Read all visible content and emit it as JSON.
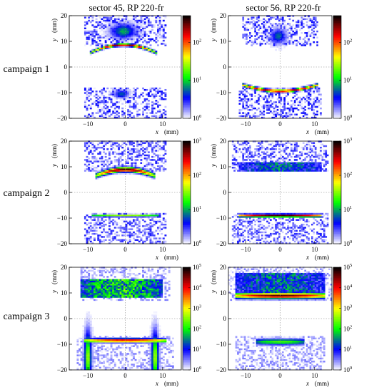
{
  "figure": {
    "columns": [
      "sector 45, RP 220-fr",
      "sector 56, RP 220-fr"
    ],
    "rows": [
      "campaign 1",
      "campaign 2",
      "campaign 3"
    ],
    "xlabel": "x",
    "xunit": "(mm)",
    "ylabel": "y",
    "yunit": "(mm)"
  },
  "chart_data": [
    {
      "type": "heatmap",
      "id": "c1-s45",
      "title": "sector 45, RP 220-fr",
      "row_label": "campaign 1",
      "xlabel": "x (mm)",
      "ylabel": "y (mm)",
      "xlim": [
        -15,
        15
      ],
      "ylim": [
        -20,
        20
      ],
      "x_ticks": [
        -10,
        0,
        10
      ],
      "y_ticks": [
        -20,
        -10,
        0,
        10,
        20
      ],
      "colorscale": {
        "type": "log",
        "min": 1,
        "max": 500,
        "tick_labels": [
          "10^0",
          "10^1",
          "10^2"
        ]
      },
      "color_stops": [
        "#ffffff",
        "#0000ff",
        "#00ff00",
        "#ffff00",
        "#ff0000",
        "#000000"
      ],
      "blobs": [
        {
          "cx": -0.5,
          "cy": 8.7,
          "w": 18,
          "h": 1.4,
          "shape": "arc",
          "peak": 300
        },
        {
          "cx": -0.5,
          "cy": 14,
          "w": 9,
          "h": 6,
          "shape": "fan",
          "peak": 8
        },
        {
          "cx": -1,
          "cy": -10.5,
          "w": 5,
          "h": 4,
          "shape": "spot",
          "peak": 6
        }
      ],
      "noise": [
        {
          "x": [
            -11,
            11
          ],
          "y": [
            8,
            20
          ]
        },
        {
          "x": [
            -11,
            11
          ],
          "y": [
            -20,
            -8
          ]
        }
      ]
    },
    {
      "type": "heatmap",
      "id": "c1-s56",
      "title": "sector 56, RP 220-fr",
      "row_label": "campaign 1",
      "xlabel": "x (mm)",
      "ylabel": "y (mm)",
      "xlim": [
        -15,
        15
      ],
      "ylim": [
        -20,
        20
      ],
      "x_ticks": [
        -10,
        0,
        10
      ],
      "y_ticks": [
        -20,
        -10,
        0,
        10,
        20
      ],
      "colorscale": {
        "type": "log",
        "min": 1,
        "max": 500,
        "tick_labels": [
          "10^0",
          "10^1",
          "10^2"
        ]
      },
      "color_stops": [
        "#ffffff",
        "#0000ff",
        "#00ff00",
        "#ffff00",
        "#ff0000",
        "#000000"
      ],
      "blobs": [
        {
          "cx": -0.5,
          "cy": 12,
          "w": 6,
          "h": 6,
          "shape": "fan",
          "peak": 6
        },
        {
          "cx": 0,
          "cy": -9.3,
          "w": 22,
          "h": 1.5,
          "shape": "arc-down",
          "peak": 300
        }
      ],
      "noise": [
        {
          "x": [
            -11,
            11
          ],
          "y": [
            8,
            20
          ]
        },
        {
          "x": [
            -12,
            12
          ],
          "y": [
            -20,
            -8
          ]
        }
      ]
    },
    {
      "type": "heatmap",
      "id": "c2-s45",
      "title": "",
      "row_label": "campaign 2",
      "xlabel": "x (mm)",
      "ylabel": "y (mm)",
      "xlim": [
        -15,
        15
      ],
      "ylim": [
        -20,
        20
      ],
      "x_ticks": [
        -10,
        0,
        10
      ],
      "y_ticks": [
        -20,
        -10,
        0,
        10,
        20
      ],
      "colorscale": {
        "type": "log",
        "min": 1,
        "max": 1000,
        "tick_labels": [
          "10^0",
          "10^1",
          "10^2",
          "10^3"
        ]
      },
      "color_stops": [
        "#ffffff",
        "#0000ff",
        "#00ff00",
        "#ffff00",
        "#ff0000",
        "#000000"
      ],
      "blobs": [
        {
          "cx": 0,
          "cy": 9,
          "w": 16,
          "h": 2.5,
          "shape": "arc",
          "peak": 800
        },
        {
          "cx": 0,
          "cy": -9,
          "w": 18,
          "h": 1.2,
          "shape": "bar",
          "peak": 40
        }
      ],
      "noise": [
        {
          "x": [
            -11,
            11
          ],
          "y": [
            8,
            20
          ]
        },
        {
          "x": [
            -11,
            11
          ],
          "y": [
            -20,
            -8
          ]
        }
      ]
    },
    {
      "type": "heatmap",
      "id": "c2-s56",
      "title": "",
      "row_label": "campaign 2",
      "xlabel": "x (mm)",
      "ylabel": "y (mm)",
      "xlim": [
        -15,
        15
      ],
      "ylim": [
        -20,
        20
      ],
      "x_ticks": [
        -10,
        0,
        10
      ],
      "y_ticks": [
        -20,
        -10,
        0,
        10,
        20
      ],
      "colorscale": {
        "type": "log",
        "min": 1,
        "max": 1000,
        "tick_labels": [
          "10^0",
          "10^1",
          "10^2",
          "10^3"
        ]
      },
      "color_stops": [
        "#ffffff",
        "#0000ff",
        "#00ff00",
        "#ffff00",
        "#ff0000",
        "#000000"
      ],
      "blobs": [
        {
          "cx": 0,
          "cy": 10,
          "w": 24,
          "h": 3,
          "shape": "band",
          "peak": 12
        },
        {
          "cx": 0,
          "cy": -9,
          "w": 24,
          "h": 1.5,
          "shape": "bar",
          "peak": 900
        }
      ],
      "noise": [
        {
          "x": [
            -14,
            14
          ],
          "y": [
            8,
            20
          ]
        },
        {
          "x": [
            -14,
            14
          ],
          "y": [
            -20,
            -8
          ]
        }
      ]
    },
    {
      "type": "heatmap",
      "id": "c3-s45",
      "title": "",
      "row_label": "campaign 3",
      "xlabel": "x (mm)",
      "ylabel": "y (mm)",
      "xlim": [
        -15,
        15
      ],
      "ylim": [
        -20,
        20
      ],
      "x_ticks": [
        -10,
        0,
        10
      ],
      "y_ticks": [
        -20,
        -10,
        0,
        10,
        20
      ],
      "colorscale": {
        "type": "log",
        "min": 1,
        "max": 100000,
        "tick_labels": [
          "10^0",
          "10^1",
          "10^2",
          "10^3",
          "10^4",
          "10^5"
        ]
      },
      "color_stops": [
        "#ffffff",
        "#0000ff",
        "#00ff00",
        "#ffff00",
        "#ff0000",
        "#000000"
      ],
      "blobs": [
        {
          "cx": -1,
          "cy": 12,
          "w": 22,
          "h": 7,
          "shape": "band",
          "peak": 400
        },
        {
          "cx": 0,
          "cy": -8.5,
          "w": 22,
          "h": 2,
          "shape": "bar",
          "peak": 20000
        },
        {
          "cx": -10,
          "cy": -15,
          "w": 2.5,
          "h": 10,
          "shape": "col",
          "peak": 500
        },
        {
          "cx": 8,
          "cy": -15,
          "w": 2.5,
          "h": 10,
          "shape": "col",
          "peak": 500
        }
      ],
      "noise": [
        {
          "x": [
            -12,
            12
          ],
          "y": [
            7,
            20
          ]
        },
        {
          "x": [
            -13,
            13
          ],
          "y": [
            -20,
            -7
          ]
        }
      ]
    },
    {
      "type": "heatmap",
      "id": "c3-s56",
      "title": "",
      "row_label": "campaign 3",
      "xlabel": "x (mm)",
      "ylabel": "y (mm)",
      "xlim": [
        -15,
        15
      ],
      "ylim": [
        -20,
        20
      ],
      "x_ticks": [
        -10,
        0,
        10
      ],
      "y_ticks": [
        -20,
        -10,
        0,
        10,
        20
      ],
      "colorscale": {
        "type": "log",
        "min": 1,
        "max": 100000,
        "tick_labels": [
          "10^0",
          "10^1",
          "10^2",
          "10^3",
          "10^4",
          "10^5"
        ]
      },
      "color_stops": [
        "#ffffff",
        "#0000ff",
        "#00ff00",
        "#ffff00",
        "#ff0000",
        "#000000"
      ],
      "blobs": [
        {
          "cx": 0,
          "cy": 9,
          "w": 26,
          "h": 3,
          "shape": "bar",
          "peak": 50000
        },
        {
          "cx": 0,
          "cy": 14,
          "w": 26,
          "h": 8,
          "shape": "band",
          "peak": 80
        },
        {
          "cx": 0,
          "cy": -9,
          "w": 14,
          "h": 3,
          "shape": "bar",
          "peak": 200
        }
      ],
      "noise": [
        {
          "x": [
            -15,
            15
          ],
          "y": [
            7,
            20
          ]
        },
        {
          "x": [
            -13,
            13
          ],
          "y": [
            -20,
            -7
          ]
        }
      ]
    }
  ]
}
